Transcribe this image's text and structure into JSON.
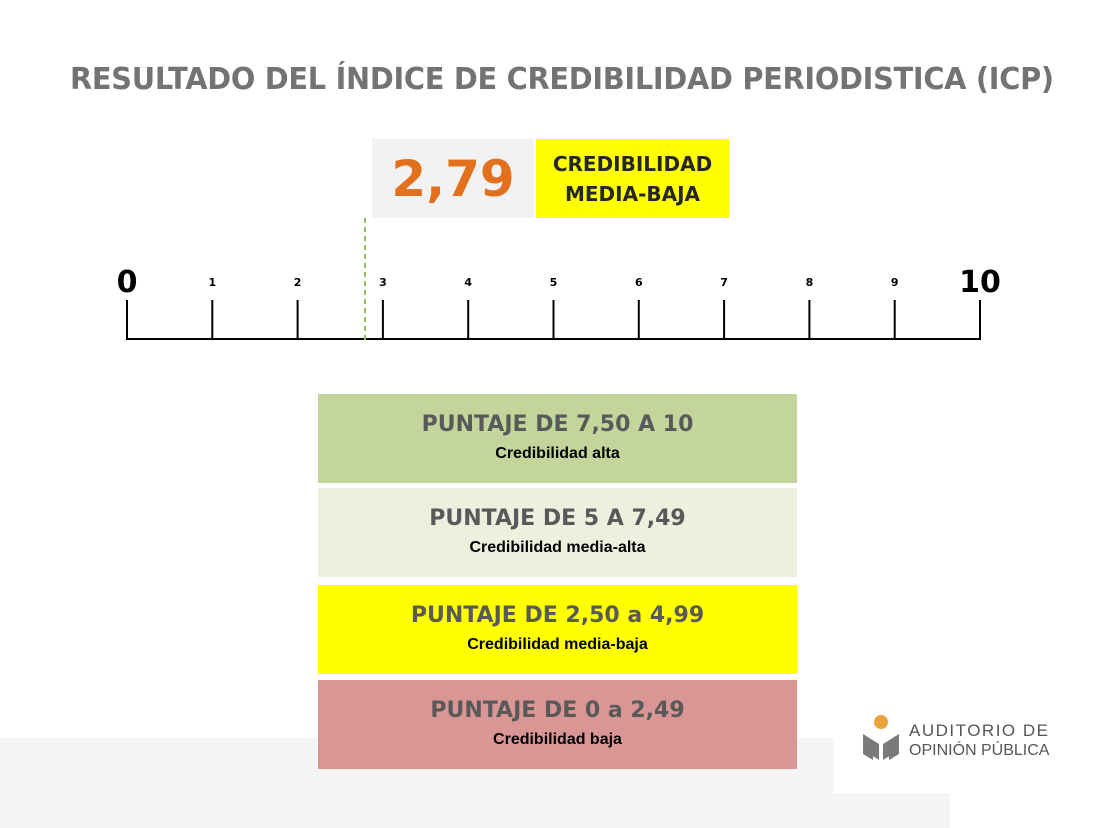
{
  "title": "RESULTADO DEL ÍNDICE DE CREDIBILIDAD PERIODISTICA (ICP)",
  "result": {
    "score_text": "2,79",
    "score": 2.79,
    "category_line1": "CREDIBILIDAD",
    "category_line2": "MEDIA-BAJA"
  },
  "scale": {
    "min": 0,
    "max": 10,
    "ticks": [
      {
        "value": 0,
        "label": "0",
        "major": true
      },
      {
        "value": 1,
        "label": "1"
      },
      {
        "value": 2,
        "label": "2"
      },
      {
        "value": 3,
        "label": "3"
      },
      {
        "value": 4,
        "label": "4"
      },
      {
        "value": 5,
        "label": "5"
      },
      {
        "value": 6,
        "label": "6"
      },
      {
        "value": 7,
        "label": "7"
      },
      {
        "value": 8,
        "label": "8"
      },
      {
        "value": 9,
        "label": "9"
      },
      {
        "value": 10,
        "label": "10",
        "major": true
      }
    ],
    "marker_color": "#92c060"
  },
  "legend": [
    {
      "range": "PUNTAJE DE 7,50 A 10",
      "label": "Credibilidad alta",
      "color": "#c3d59b"
    },
    {
      "range": "PUNTAJE DE 5 A 7,49",
      "label": "Credibilidad media-alta",
      "color": "#ebf0df"
    },
    {
      "range": "PUNTAJE DE 2,50 a 4,99",
      "label": "Credibilidad media-baja",
      "color": "#ffff00"
    },
    {
      "range": "PUNTAJE DE 0 a 2,49",
      "label": "Credibilidad baja",
      "color": "#d99694"
    }
  ],
  "logo": {
    "line1": "AUDITORIO DE",
    "line2": "OPINIÓN PÚBLICA",
    "accent": "#e8a33a",
    "mark": "#7a7a7a"
  }
}
